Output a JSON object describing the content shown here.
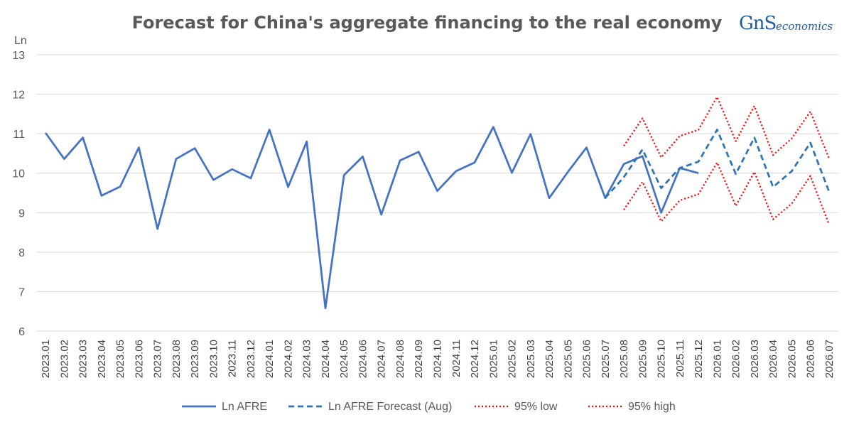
{
  "title": "Forecast for China's aggregate financing to the real economy",
  "logo": {
    "mark": "GnS",
    "text": "economics"
  },
  "colors": {
    "actual": "#4472c4",
    "forecast": "#2e75b6",
    "low": "#ff0000",
    "high": "#ff0000",
    "grid": "#d9d9d9",
    "axis_text": "#595959"
  },
  "chart_data": {
    "type": "line",
    "ylabel": "Ln",
    "ylim": [
      6,
      13
    ],
    "yticks": [
      6,
      7,
      8,
      9,
      10,
      11,
      12,
      13
    ],
    "grid": "horizontal",
    "legend_position": "bottom",
    "x": [
      "2023.01",
      "2023.02",
      "2023.03",
      "2023.04",
      "2023.05",
      "2023.06",
      "2023.07",
      "2023.08",
      "2023.09",
      "2023.10",
      "2023.11",
      "2023.12",
      "2024.01",
      "2024.02",
      "2024.03",
      "2024.04",
      "2024.05",
      "2024.06",
      "2024.07",
      "2024.08",
      "2024.09",
      "2024.10",
      "2024.11",
      "2024.12",
      "2025.01",
      "2025.02",
      "2025.03",
      "2025.04",
      "2025.05",
      "2025.06",
      "2025.07",
      "2025.08",
      "2025.09",
      "2025.10",
      "2025.11",
      "2025.12",
      "2026.01",
      "2026.02",
      "2026.03",
      "2026.04",
      "2026.05",
      "2026.06",
      "2026.07"
    ],
    "series": [
      {
        "name": "Ln AFRE",
        "style": "solid",
        "values": [
          11.02,
          10.36,
          10.9,
          9.43,
          9.66,
          10.65,
          8.59,
          10.36,
          10.63,
          9.83,
          10.1,
          9.87,
          11.1,
          9.65,
          10.8,
          6.58,
          9.95,
          10.42,
          8.95,
          10.32,
          10.54,
          9.55,
          10.05,
          10.27,
          11.17,
          10.01,
          10.99,
          9.37,
          10.03,
          10.65,
          9.37,
          10.23,
          10.43,
          9.0,
          10.13,
          10.0,
          null,
          null,
          null,
          null,
          null,
          null,
          null
        ]
      },
      {
        "name": "Ln AFRE Forecast (Aug)",
        "style": "dashed",
        "values": [
          null,
          null,
          null,
          null,
          null,
          null,
          null,
          null,
          null,
          null,
          null,
          null,
          null,
          null,
          null,
          null,
          null,
          null,
          null,
          null,
          null,
          null,
          null,
          null,
          null,
          null,
          null,
          null,
          null,
          null,
          9.37,
          9.9,
          10.6,
          9.62,
          10.13,
          10.29,
          11.1,
          9.98,
          10.9,
          9.65,
          10.05,
          10.77,
          9.53
        ]
      },
      {
        "name": "95% low",
        "style": "dotted",
        "values": [
          null,
          null,
          null,
          null,
          null,
          null,
          null,
          null,
          null,
          null,
          null,
          null,
          null,
          null,
          null,
          null,
          null,
          null,
          null,
          null,
          null,
          null,
          null,
          null,
          null,
          null,
          null,
          null,
          null,
          null,
          null,
          9.07,
          9.78,
          8.78,
          9.31,
          9.47,
          10.27,
          9.17,
          10.03,
          8.83,
          9.23,
          9.93,
          8.7
        ]
      },
      {
        "name": "95% high",
        "style": "dotted",
        "values": [
          null,
          null,
          null,
          null,
          null,
          null,
          null,
          null,
          null,
          null,
          null,
          null,
          null,
          null,
          null,
          null,
          null,
          null,
          null,
          null,
          null,
          null,
          null,
          null,
          null,
          null,
          null,
          null,
          null,
          null,
          null,
          10.69,
          11.39,
          10.4,
          10.94,
          11.1,
          11.93,
          10.81,
          11.7,
          10.46,
          10.88,
          11.56,
          10.37
        ]
      }
    ]
  }
}
